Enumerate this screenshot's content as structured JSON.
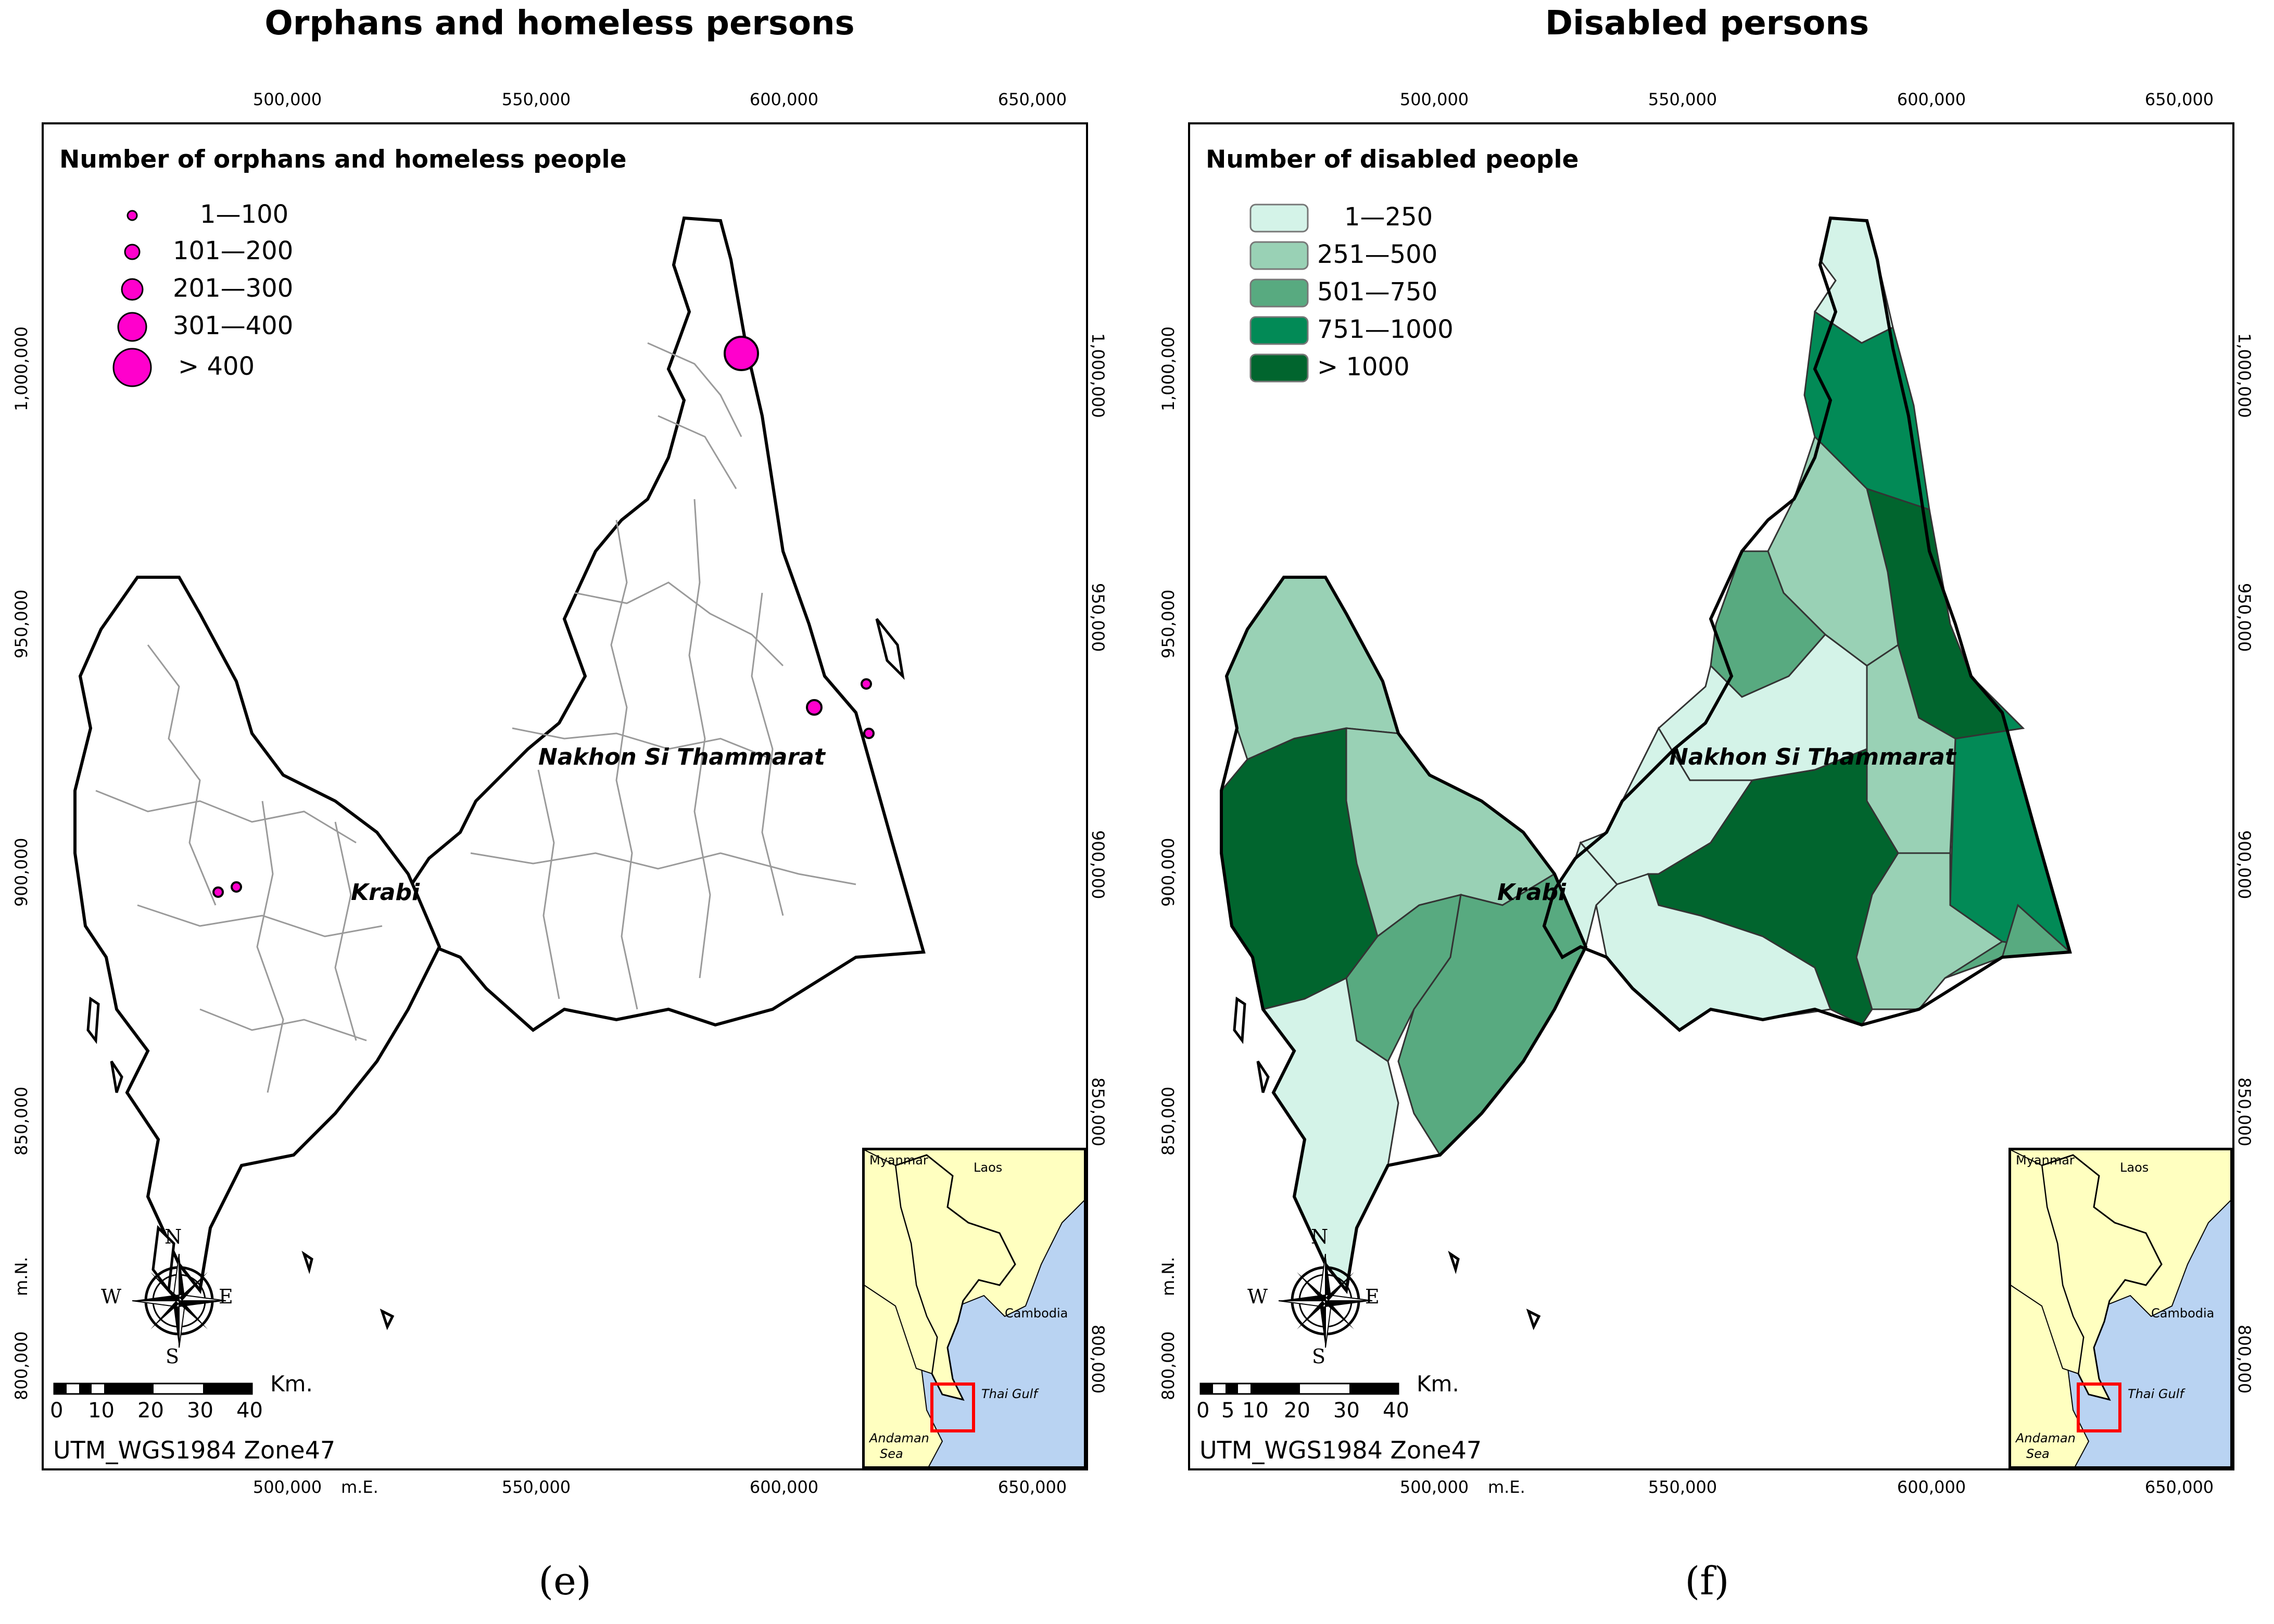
{
  "panels": [
    {
      "title": "Orphans and homeless persons",
      "label": "(e)",
      "legend_title": "Number of orphans and homeless people",
      "legend": [
        "1—100",
        "101—200",
        "201—300",
        "301—400",
        "> 400"
      ],
      "legend_type": "graduated-circles",
      "legend_color": "#ff00cc"
    },
    {
      "title": "Disabled persons",
      "label": "(f)",
      "legend_title": "Number of disabled people",
      "legend": [
        "1—250",
        "251—500",
        "501—750",
        "751—1000",
        "> 1000"
      ],
      "legend_type": "choropleth",
      "legend_colors": [
        "#d4f3e8",
        "#99d1b5",
        "#58aa80",
        "#028a56",
        "#01652e"
      ]
    }
  ],
  "axes": {
    "x_ticks": [
      "500,000",
      "550,000",
      "600,000",
      "650,000"
    ],
    "y_ticks": [
      "1,000,000",
      "950,000",
      "900,000",
      "850,000",
      "800,000"
    ],
    "x_unit": "m.E.",
    "y_unit": "m.N."
  },
  "places": {
    "province_east": "Nakhon Si Thammarat",
    "province_west": "Krabi"
  },
  "crs": "UTM_WGS1984 Zone47",
  "scale": {
    "labels": [
      "0",
      "10",
      "20",
      "30",
      "40"
    ],
    "mid_label": "5",
    "unit": "Km."
  },
  "compass": {
    "n": "N",
    "s": "S",
    "e": "E",
    "w": "W"
  },
  "inset": {
    "labels": {
      "myanmar": "Myanmar",
      "laos": "Laos",
      "cambodia": "Cambodia",
      "thai_gulf": "Thai Gulf",
      "andaman": "Andaman",
      "sea": "Sea"
    },
    "water_color": "#b9d3f2",
    "land_color": "#ffffc0",
    "highlight_color": "#ff0000"
  },
  "colors": {
    "orphan_marker": "#ff00cc",
    "outline": "#000000",
    "boundary": "#9a9a9a"
  }
}
